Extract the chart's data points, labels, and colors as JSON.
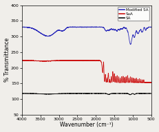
{
  "title": "",
  "xlabel": "Wavenumber (cm⁻¹)",
  "ylabel": "% Transmittance",
  "xlim": [
    4000,
    500
  ],
  "ylim": [
    50,
    400
  ],
  "yticks": [
    50,
    100,
    150,
    200,
    250,
    300,
    350,
    400
  ],
  "xticks": [
    4000,
    3500,
    3000,
    2500,
    2000,
    1500,
    1000,
    500
  ],
  "legend": [
    "Modified SA",
    "SuA",
    "SA"
  ],
  "colors": {
    "modified_sa": "#3030bb",
    "sua": "#cc1111",
    "sa": "#111111"
  },
  "background": "#f0eeea",
  "mod_sa_base": 330,
  "sua_base": 223,
  "sa_base": 118
}
